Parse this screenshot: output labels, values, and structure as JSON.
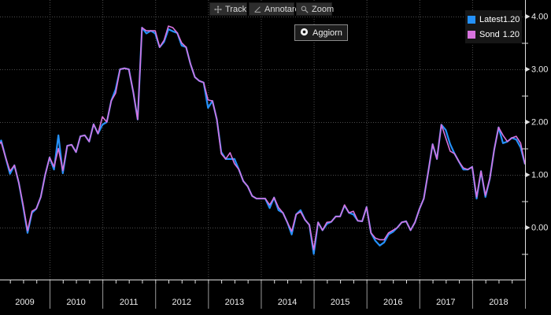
{
  "toolbar": {
    "track_label": "Track",
    "annotare_label": "Annotare",
    "zoom_label": "Zoom",
    "aggiorn_label": "Aggiorn"
  },
  "legend": {
    "items": [
      {
        "label": "Latest",
        "value": "1.20",
        "color": "#2491fa"
      },
      {
        "label": "Sond",
        "value": "1.20",
        "color": "#d873de"
      }
    ]
  },
  "axis": {
    "y_ticks": [
      {
        "label": "4.00",
        "value": 4
      },
      {
        "label": "3.00",
        "value": 3
      },
      {
        "label": "2.00",
        "value": 2
      },
      {
        "label": "1.00",
        "value": 1
      },
      {
        "label": "0.00",
        "value": 0
      }
    ],
    "y_minor_values": [
      3.5,
      2.5,
      1.5,
      0.5,
      -0.5
    ],
    "years": [
      "2009",
      "2010",
      "2011",
      "2012",
      "2013",
      "2014",
      "2015",
      "2016",
      "2017",
      "2018"
    ]
  },
  "chart_data": {
    "type": "line",
    "x_start": "2009-01",
    "x_end": "2019-01",
    "frequency": "monthly",
    "ylim": [
      -0.6,
      4.35
    ],
    "grid": "dotted",
    "legend_position": "top-right",
    "series": [
      {
        "name": "Latest",
        "color": "#2491fa",
        "values": [
          1.5,
          1.65,
          1.33,
          1.02,
          1.18,
          0.85,
          0.4,
          -0.1,
          0.28,
          0.36,
          0.58,
          1.0,
          1.33,
          1.1,
          1.75,
          1.03,
          1.55,
          1.57,
          1.43,
          1.73,
          1.75,
          1.63,
          1.96,
          1.78,
          1.95,
          2.0,
          2.4,
          2.62,
          3.0,
          3.02,
          3.0,
          2.57,
          2.05,
          3.79,
          3.68,
          3.73,
          3.68,
          3.42,
          3.52,
          3.76,
          3.72,
          3.69,
          3.45,
          3.42,
          3.1,
          2.85,
          2.78,
          2.75,
          2.27,
          2.4,
          2.05,
          1.43,
          1.3,
          1.3,
          1.3,
          1.1,
          0.88,
          0.78,
          0.6,
          0.55,
          0.55,
          0.55,
          0.37,
          0.57,
          0.33,
          0.28,
          0.1,
          -0.13,
          0.25,
          0.33,
          0.15,
          0.05,
          -0.5,
          0.1,
          -0.05,
          0.07,
          0.11,
          0.21,
          0.21,
          0.42,
          0.28,
          0.25,
          0.13,
          0.12,
          0.39,
          -0.1,
          -0.25,
          -0.34,
          -0.28,
          -0.13,
          -0.08,
          0.0,
          0.1,
          0.12,
          -0.05,
          0.1,
          0.35,
          0.55,
          1.05,
          1.58,
          1.3,
          1.95,
          1.85,
          1.58,
          1.4,
          1.25,
          1.1,
          1.1,
          1.15,
          0.55,
          1.07,
          0.58,
          0.93,
          1.48,
          1.9,
          1.6,
          1.63,
          1.7,
          1.67,
          1.52,
          1.2
        ]
      },
      {
        "name": "Sond",
        "color": "#d873de",
        "values": [
          1.55,
          1.62,
          1.33,
          1.07,
          1.18,
          0.85,
          0.43,
          -0.06,
          0.31,
          0.36,
          0.58,
          1.0,
          1.33,
          1.15,
          1.5,
          1.08,
          1.55,
          1.57,
          1.43,
          1.73,
          1.75,
          1.63,
          1.96,
          1.78,
          2.1,
          2.0,
          2.4,
          2.55,
          3.0,
          3.02,
          3.0,
          2.57,
          2.05,
          3.79,
          3.73,
          3.73,
          3.73,
          3.42,
          3.55,
          3.82,
          3.79,
          3.69,
          3.5,
          3.42,
          3.1,
          2.85,
          2.78,
          2.75,
          2.42,
          2.4,
          2.05,
          1.4,
          1.3,
          1.42,
          1.21,
          1.1,
          0.88,
          0.78,
          0.6,
          0.55,
          0.55,
          0.55,
          0.43,
          0.57,
          0.38,
          0.28,
          0.1,
          -0.07,
          0.25,
          0.3,
          0.15,
          0.05,
          -0.42,
          0.1,
          -0.05,
          0.1,
          0.11,
          0.21,
          0.21,
          0.43,
          0.28,
          0.31,
          0.13,
          0.12,
          0.39,
          -0.1,
          -0.2,
          -0.23,
          -0.23,
          -0.1,
          -0.05,
          0.0,
          0.1,
          0.12,
          -0.05,
          0.1,
          0.35,
          0.55,
          1.05,
          1.58,
          1.3,
          1.95,
          1.7,
          1.45,
          1.4,
          1.25,
          1.13,
          1.1,
          1.15,
          0.58,
          1.07,
          0.61,
          0.93,
          1.48,
          1.9,
          1.75,
          1.63,
          1.7,
          1.73,
          1.6,
          1.2
        ]
      }
    ],
    "colors": {
      "background": "#000000",
      "grid": "#4c4c4c",
      "axis": "#e0e0e0",
      "label_text": "#ededed"
    }
  }
}
